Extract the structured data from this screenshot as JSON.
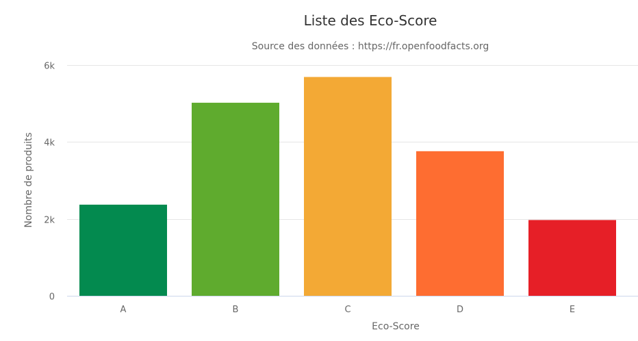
{
  "chart_data": {
    "type": "bar",
    "title": "Liste des Eco-Score",
    "subtitle": "Source des données : https://fr.openfoodfacts.org",
    "xlabel": "Eco-Score",
    "ylabel": "Nombre de produits",
    "categories": [
      "A",
      "B",
      "C",
      "D",
      "E"
    ],
    "values": [
      2370,
      5020,
      5690,
      3760,
      1970
    ],
    "colors": [
      "#038a4f",
      "#5fab2e",
      "#f3a935",
      "#fe6d31",
      "#e61f27"
    ],
    "ylim": [
      0,
      6000
    ],
    "yticks": [
      0,
      2000,
      4000,
      6000
    ],
    "ytick_labels": [
      "0",
      "2k",
      "4k",
      "6k"
    ],
    "grid": true,
    "legend": "none"
  }
}
